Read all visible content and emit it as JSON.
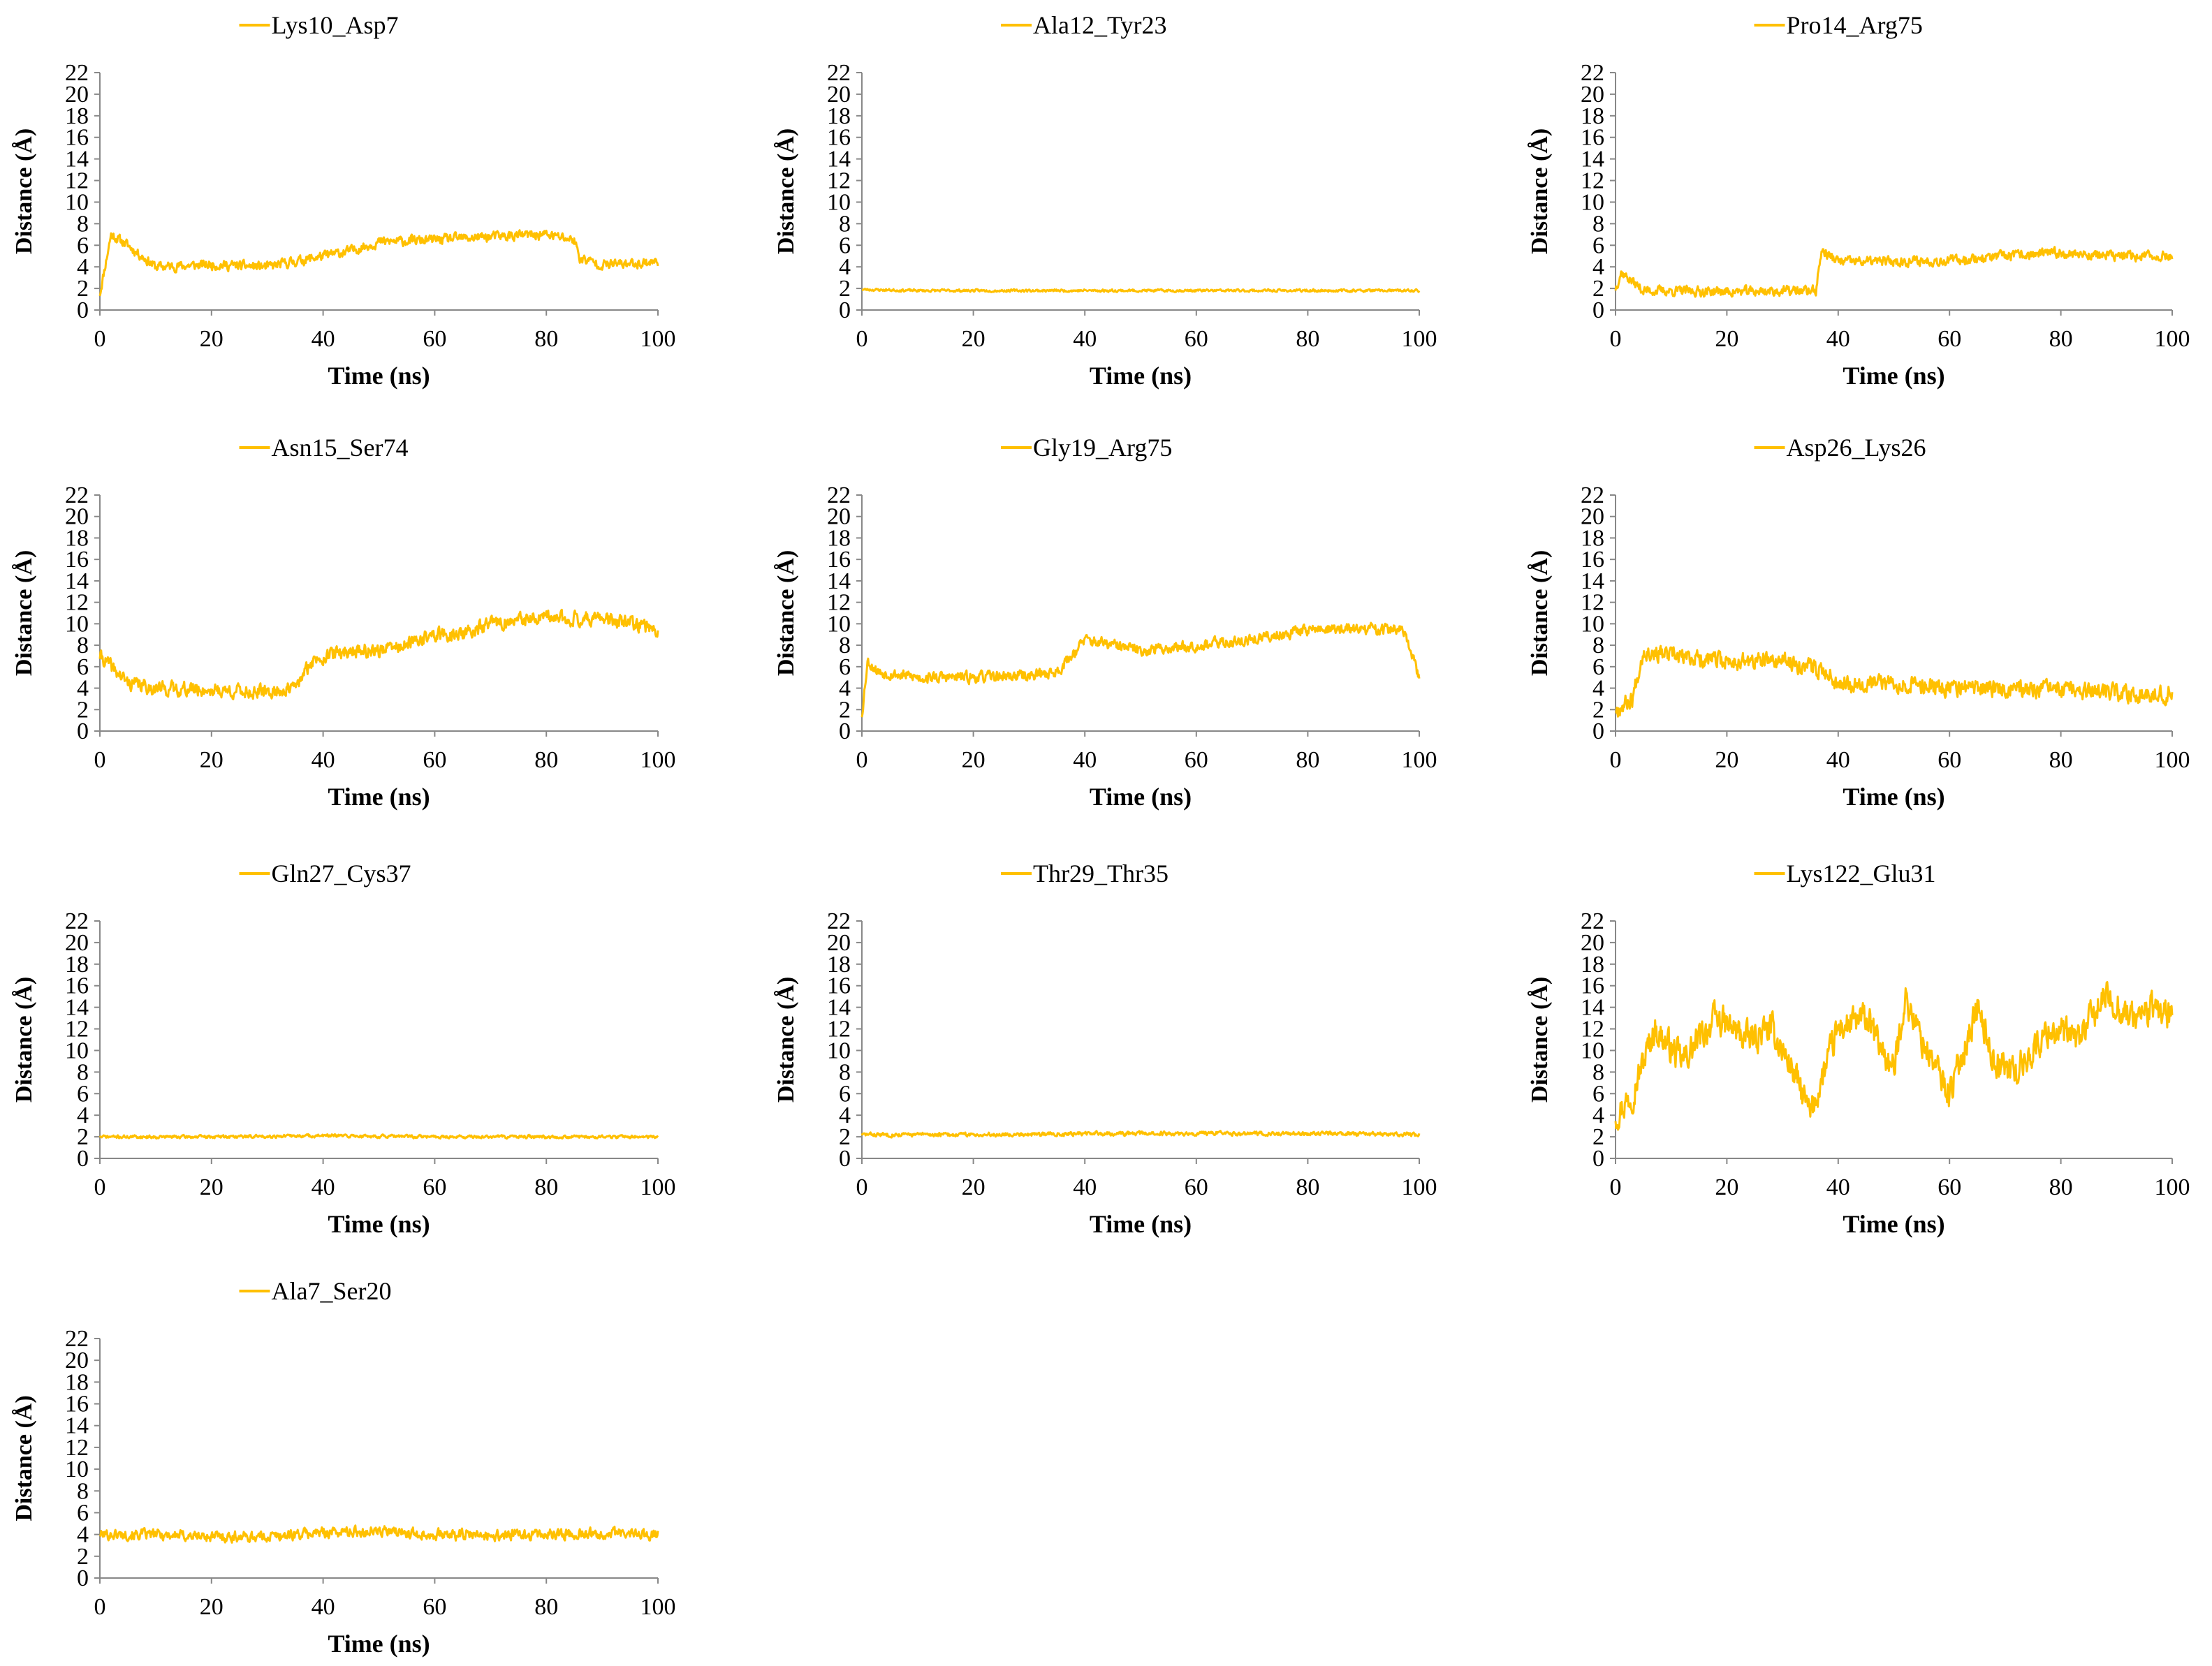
{
  "figure": {
    "line_color": "#FFC000",
    "axis_color": "#888888"
  },
  "chart_data": [
    {
      "type": "line",
      "series_name": "Lys10_Asp7",
      "xlabel": "Time (ns)",
      "ylabel": "Distance (Å)",
      "xlim": [
        0,
        100
      ],
      "ylim": [
        0,
        22
      ],
      "xticks": [
        "0",
        "20",
        "40",
        "60",
        "80",
        "100"
      ],
      "yticks": [
        "0",
        "2",
        "4",
        "6",
        "8",
        "10",
        "12",
        "14",
        "16",
        "18",
        "20",
        "22"
      ],
      "x": [
        0,
        2,
        5,
        10,
        20,
        30,
        40,
        45,
        50,
        60,
        70,
        80,
        85,
        86,
        90,
        95,
        100
      ],
      "y": [
        1.5,
        7.0,
        6.0,
        4.0,
        4.2,
        4.0,
        5.0,
        5.5,
        6.3,
        6.5,
        6.8,
        7.0,
        6.5,
        4.8,
        4.2,
        4.3,
        4.5
      ],
      "noise": 0.7,
      "seed": 11
    },
    {
      "type": "line",
      "series_name": "Ala12_Tyr23",
      "xlabel": "Time (ns)",
      "ylabel": "Distance (Å)",
      "xlim": [
        0,
        100
      ],
      "ylim": [
        0,
        22
      ],
      "xticks": [
        "0",
        "20",
        "40",
        "60",
        "80",
        "100"
      ],
      "yticks": [
        "0",
        "2",
        "4",
        "6",
        "8",
        "10",
        "12",
        "14",
        "16",
        "18",
        "20",
        "22"
      ],
      "x": [
        0,
        10,
        30,
        50,
        70,
        90,
        100
      ],
      "y": [
        1.9,
        1.8,
        1.8,
        1.8,
        1.8,
        1.8,
        1.8
      ],
      "noise": 0.18,
      "seed": 23
    },
    {
      "type": "line",
      "series_name": "Pro14_Arg75",
      "xlabel": "Time (ns)",
      "ylabel": "Distance (Å)",
      "xlim": [
        0,
        100
      ],
      "ylim": [
        0,
        22
      ],
      "xticks": [
        "0",
        "20",
        "40",
        "60",
        "80",
        "100"
      ],
      "yticks": [
        "0",
        "2",
        "4",
        "6",
        "8",
        "10",
        "12",
        "14",
        "16",
        "18",
        "20",
        "22"
      ],
      "x": [
        0,
        1,
        5,
        20,
        36,
        37,
        40,
        50,
        60,
        70,
        80,
        90,
        100
      ],
      "y": [
        2.0,
        3.5,
        1.8,
        1.7,
        1.8,
        5.5,
        4.5,
        4.5,
        4.6,
        5.0,
        5.3,
        5.0,
        5.0
      ],
      "noise": 0.7,
      "seed": 37
    },
    {
      "type": "line",
      "series_name": "Asn15_Ser74",
      "xlabel": "Time (ns)",
      "ylabel": "Distance (Å)",
      "xlim": [
        0,
        100
      ],
      "ylim": [
        0,
        22
      ],
      "xticks": [
        "0",
        "20",
        "40",
        "60",
        "80",
        "100"
      ],
      "yticks": [
        "0",
        "2",
        "4",
        "6",
        "8",
        "10",
        "12",
        "14",
        "16",
        "18",
        "20",
        "22"
      ],
      "x": [
        0,
        2,
        5,
        10,
        20,
        30,
        35,
        38,
        40,
        45,
        50,
        55,
        60,
        65,
        70,
        80,
        90,
        100
      ],
      "y": [
        7.0,
        6.0,
        4.5,
        4.0,
        3.8,
        3.6,
        4.0,
        6.5,
        7.0,
        7.5,
        7.5,
        8.0,
        9.0,
        9.0,
        10.0,
        10.5,
        10.5,
        9.5
      ],
      "noise": 1.0,
      "seed": 41
    },
    {
      "type": "line",
      "series_name": "Gly19_Arg75",
      "xlabel": "Time (ns)",
      "ylabel": "Distance (Å)",
      "xlim": [
        0,
        100
      ],
      "ylim": [
        0,
        22
      ],
      "xticks": [
        "0",
        "20",
        "40",
        "60",
        "80",
        "100"
      ],
      "yticks": [
        "0",
        "2",
        "4",
        "6",
        "8",
        "10",
        "12",
        "14",
        "16",
        "18",
        "20",
        "22"
      ],
      "x": [
        0,
        1,
        3,
        10,
        20,
        30,
        35,
        40,
        45,
        50,
        60,
        70,
        80,
        90,
        97,
        100
      ],
      "y": [
        1.5,
        6.5,
        5.5,
        5.0,
        5.0,
        5.2,
        5.5,
        8.5,
        8.0,
        7.5,
        8.0,
        8.5,
        9.5,
        9.5,
        9.5,
        5.0
      ],
      "noise": 0.8,
      "seed": 53
    },
    {
      "type": "line",
      "series_name": "Asp26_Lys26",
      "xlabel": "Time (ns)",
      "ylabel": "Distance (Å)",
      "xlim": [
        0,
        100
      ],
      "ylim": [
        0,
        22
      ],
      "xticks": [
        "0",
        "20",
        "40",
        "60",
        "80",
        "100"
      ],
      "yticks": [
        "0",
        "2",
        "4",
        "6",
        "8",
        "10",
        "12",
        "14",
        "16",
        "18",
        "20",
        "22"
      ],
      "x": [
        0,
        3,
        5,
        10,
        20,
        30,
        35,
        38,
        40,
        50,
        60,
        70,
        80,
        90,
        100
      ],
      "y": [
        2.0,
        3.0,
        7.5,
        7.0,
        6.5,
        6.5,
        6.0,
        5.5,
        4.5,
        4.5,
        4.0,
        4.0,
        3.8,
        3.5,
        3.5
      ],
      "noise": 1.2,
      "seed": 67
    },
    {
      "type": "line",
      "series_name": "Gln27_Cys37",
      "xlabel": "Time (ns)",
      "ylabel": "Distance (Å)",
      "xlim": [
        0,
        100
      ],
      "ylim": [
        0,
        22
      ],
      "xticks": [
        "0",
        "20",
        "40",
        "60",
        "80",
        "100"
      ],
      "yticks": [
        "0",
        "2",
        "4",
        "6",
        "8",
        "10",
        "12",
        "14",
        "16",
        "18",
        "20",
        "22"
      ],
      "x": [
        0,
        20,
        40,
        60,
        80,
        100
      ],
      "y": [
        2.0,
        2.0,
        2.1,
        2.0,
        2.0,
        2.0
      ],
      "noise": 0.22,
      "seed": 71
    },
    {
      "type": "line",
      "series_name": "Thr29_Thr35",
      "xlabel": "Time (ns)",
      "ylabel": "Distance (Å)",
      "xlim": [
        0,
        100
      ],
      "ylim": [
        0,
        22
      ],
      "xticks": [
        "0",
        "20",
        "40",
        "60",
        "80",
        "100"
      ],
      "yticks": [
        "0",
        "2",
        "4",
        "6",
        "8",
        "10",
        "12",
        "14",
        "16",
        "18",
        "20",
        "22"
      ],
      "x": [
        0,
        20,
        40,
        60,
        80,
        100
      ],
      "y": [
        2.2,
        2.2,
        2.3,
        2.3,
        2.3,
        2.2
      ],
      "noise": 0.28,
      "seed": 83
    },
    {
      "type": "line",
      "series_name": "Lys122_Glu31",
      "xlabel": "Time (ns)",
      "ylabel": "Distance (Å)",
      "xlim": [
        0,
        100
      ],
      "ylim": [
        0,
        22
      ],
      "xticks": [
        "0",
        "20",
        "40",
        "60",
        "80",
        "100"
      ],
      "yticks": [
        "0",
        "2",
        "4",
        "6",
        "8",
        "10",
        "12",
        "14",
        "16",
        "18",
        "20",
        "22"
      ],
      "x": [
        0,
        3,
        7,
        12,
        18,
        24,
        28,
        32,
        35,
        40,
        45,
        50,
        52,
        55,
        60,
        65,
        68,
        72,
        78,
        83,
        88,
        93,
        97,
        100
      ],
      "y": [
        4.0,
        6.0,
        12.0,
        9.0,
        13.0,
        11.0,
        12.0,
        8.0,
        4.0,
        12.0,
        13.0,
        8.0,
        15.0,
        11.0,
        6.0,
        14.0,
        9.0,
        8.0,
        12.0,
        11.0,
        15.0,
        13.0,
        14.0,
        13.0
      ],
      "noise": 2.2,
      "seed": 97
    },
    {
      "type": "line",
      "series_name": "Ala7_Ser20",
      "xlabel": "Time (ns)",
      "ylabel": "Distance (Å)",
      "xlim": [
        0,
        100
      ],
      "ylim": [
        0,
        22
      ],
      "xticks": [
        "0",
        "20",
        "40",
        "60",
        "80",
        "100"
      ],
      "yticks": [
        "0",
        "2",
        "4",
        "6",
        "8",
        "10",
        "12",
        "14",
        "16",
        "18",
        "20",
        "22"
      ],
      "x": [
        0,
        10,
        20,
        30,
        40,
        50,
        60,
        70,
        80,
        90,
        100
      ],
      "y": [
        4.0,
        4.0,
        3.8,
        3.8,
        4.2,
        4.3,
        4.0,
        3.9,
        4.0,
        4.1,
        4.0
      ],
      "noise": 0.75,
      "seed": 101
    }
  ]
}
